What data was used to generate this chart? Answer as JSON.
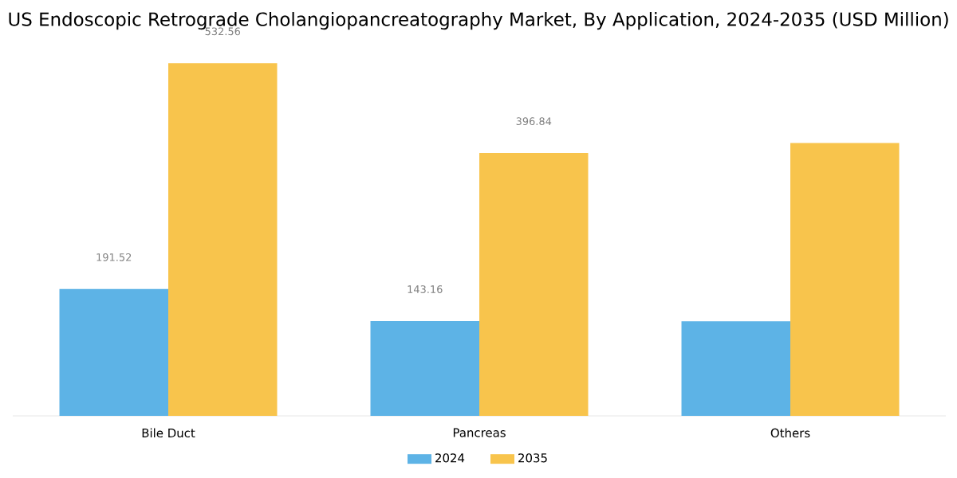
{
  "chart_data": {
    "type": "bar",
    "title": "US Endoscopic Retrograde Cholangiopancreatography Market, By Application, 2024-2035 (USD Million)",
    "categories": [
      "Bile Duct",
      "Pancreas",
      "Others"
    ],
    "legend": "bottom",
    "series": [
      {
        "name": "2024",
        "color": "#5db3e6",
        "values": [
          191.52,
          143.16,
          143
        ],
        "value_labels": [
          "191.52",
          "143.16",
          null
        ]
      },
      {
        "name": "2035",
        "color": "#f8c44c",
        "values": [
          532.56,
          396.84,
          412
        ],
        "value_labels": [
          "532.56",
          "396.84",
          null
        ]
      }
    ]
  }
}
